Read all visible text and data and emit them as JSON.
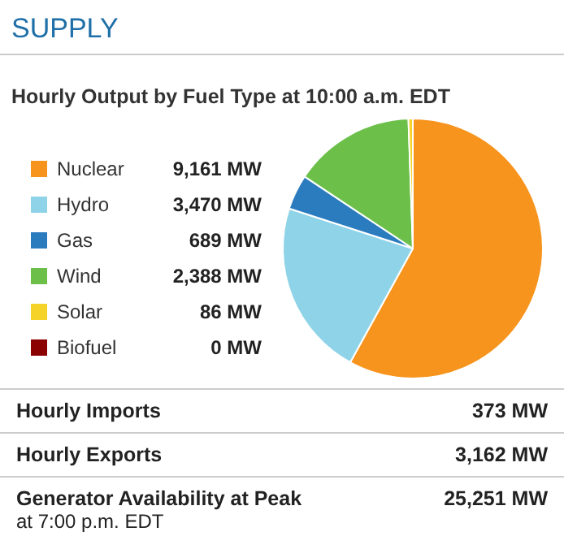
{
  "chart_data": [
    {
      "type": "pie",
      "title": "SUPPLY",
      "subtitle": "Hourly Output by Fuel Type at 10:00 a.m. EDT",
      "categories": [
        "Nuclear",
        "Hydro",
        "Gas",
        "Wind",
        "Solar",
        "Biofuel"
      ],
      "values": [
        9161,
        3470,
        689,
        2388,
        86,
        0
      ],
      "value_labels": [
        "9,161 MW",
        "3,470 MW",
        "689 MW",
        "2,388 MW",
        "86 MW",
        "0 MW"
      ],
      "colors": [
        "#f7941d",
        "#8fd3e8",
        "#2b7bbf",
        "#6cc04a",
        "#f5d328",
        "#8b0000"
      ],
      "legend": "left"
    },
    {
      "type": "other",
      "annotations": [
        "Hourly Imports",
        "373 MW",
        "Hourly Exports",
        "3,162 MW",
        "Generator Availability at Peak",
        "25,251 MW",
        "at 7:00 p.m. EDT"
      ]
    }
  ]
}
